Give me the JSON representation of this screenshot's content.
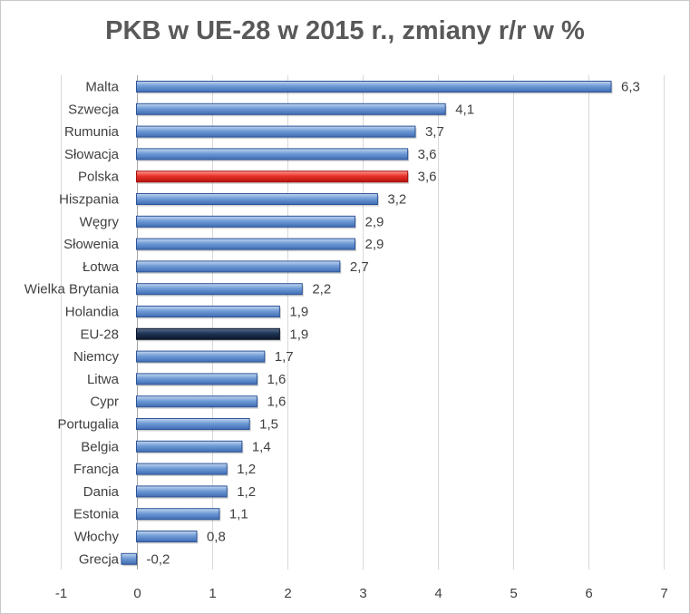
{
  "chart_data": {
    "type": "bar",
    "orientation": "horizontal",
    "title": "PKB w UE-28 w 2015 r., zmiany r/r w %",
    "xlabel": "",
    "ylabel": "",
    "xlim": [
      -1,
      7
    ],
    "x_ticks": [
      "-1",
      "0",
      "1",
      "2",
      "3",
      "4",
      "5",
      "6",
      "7"
    ],
    "grid": "vertical",
    "legend": "none",
    "categories": [
      "Malta",
      "Szwecja",
      "Rumunia",
      "Słowacja",
      "Polska",
      "Hiszpania",
      "Węgry",
      "Słowenia",
      "Łotwa",
      "Wielka Brytania",
      "Holandia",
      "EU-28",
      "Niemcy",
      "Litwa",
      "Cypr",
      "Portugalia",
      "Belgia",
      "Francja",
      "Dania",
      "Estonia",
      "Włochy",
      "Grecja"
    ],
    "values": [
      6.3,
      4.1,
      3.7,
      3.6,
      3.6,
      3.2,
      2.9,
      2.9,
      2.7,
      2.2,
      1.9,
      1.9,
      1.7,
      1.6,
      1.6,
      1.5,
      1.4,
      1.2,
      1.2,
      1.1,
      0.8,
      -0.2
    ],
    "value_labels": [
      "6,3",
      "4,1",
      "3,7",
      "3,6",
      "3,6",
      "3,2",
      "2,9",
      "2,9",
      "2,7",
      "2,2",
      "1,9",
      "1,9",
      "1,7",
      "1,6",
      "1,6",
      "1,5",
      "1,4",
      "1,2",
      "1,2",
      "1,1",
      "0,8",
      "-0,2"
    ],
    "colors": {
      "default": "#6f9bd6",
      "default_edge": "#2e5597",
      "highlight_Polska": "#e8322a",
      "highlight_Polska_edge": "#a31212",
      "highlight_EU-28": "#1f3556",
      "highlight_EU-28_edge": "#0c1628"
    }
  }
}
